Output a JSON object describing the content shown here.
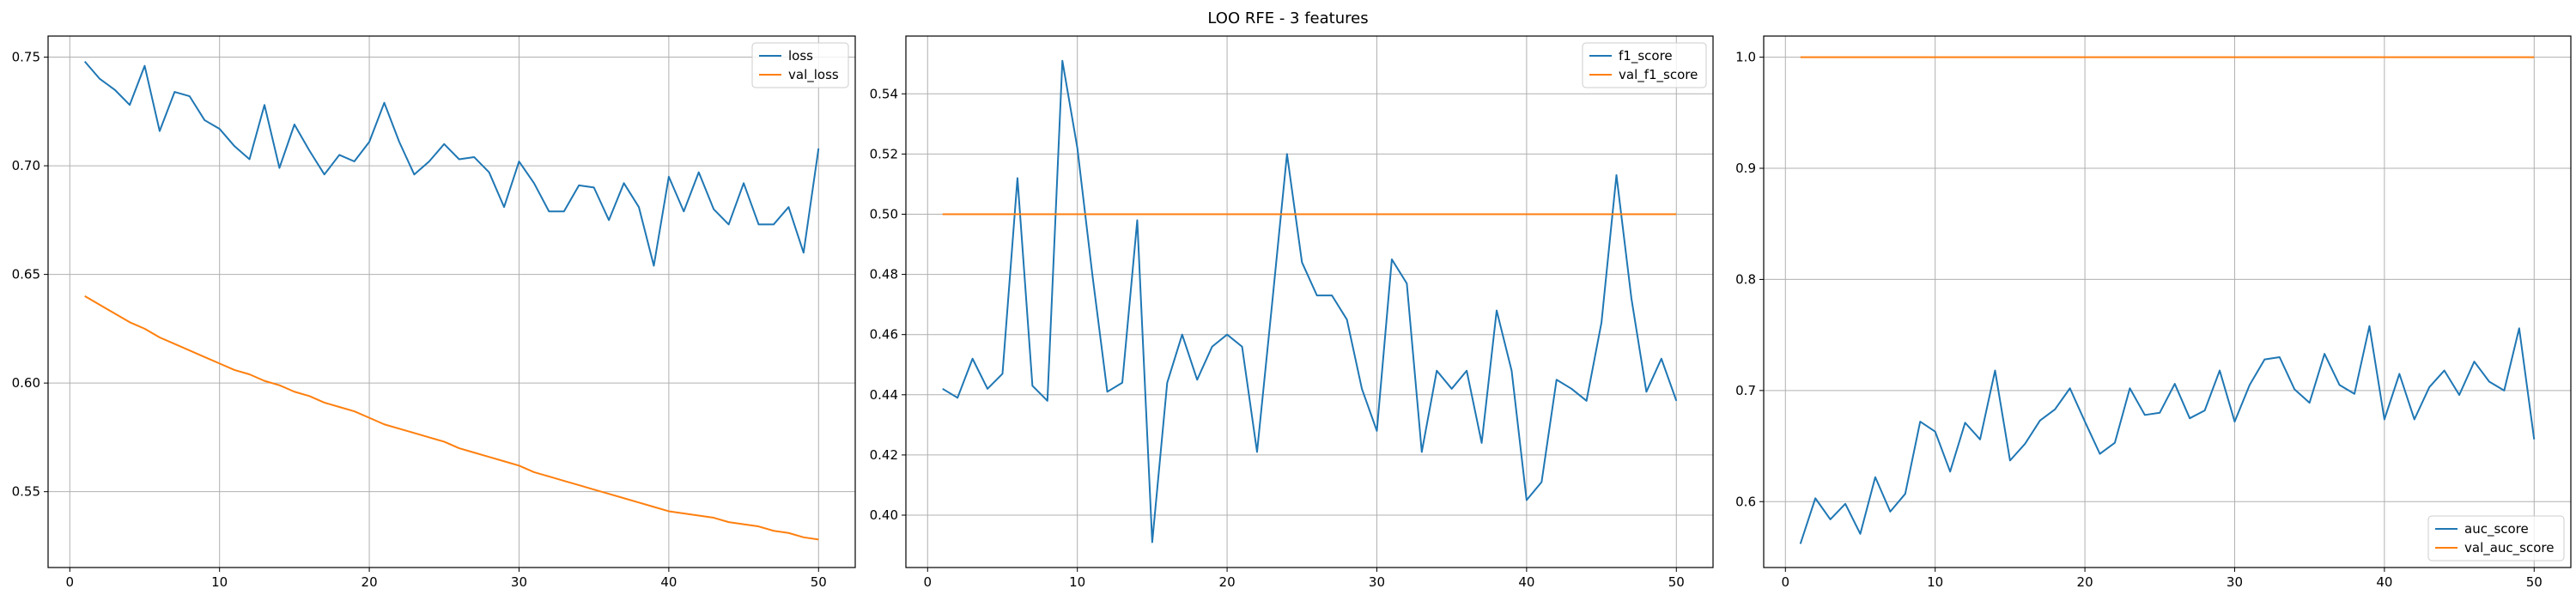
{
  "figure": {
    "title": "LOO RFE - 3 features"
  },
  "colors": {
    "series_1": "#1f77b4",
    "series_2": "#ff7f0e",
    "grid": "#b0b0b0",
    "axes": "#000000",
    "background": "#ffffff"
  },
  "chart_data": [
    {
      "type": "line",
      "title": "",
      "xlabel": "",
      "ylabel": "",
      "xlim": [
        -1.45,
        52.45
      ],
      "ylim": [
        0.5151,
        0.7597
      ],
      "xticks": [
        0,
        10,
        20,
        30,
        40,
        50
      ],
      "yticks": [
        0.55,
        0.6,
        0.65,
        0.7,
        0.75
      ],
      "ytick_labels": [
        "0.55",
        "0.60",
        "0.65",
        "0.70",
        "0.75"
      ],
      "grid": true,
      "legend_position": "top-right",
      "x": [
        1,
        2,
        3,
        4,
        5,
        6,
        7,
        8,
        9,
        10,
        11,
        12,
        13,
        14,
        15,
        16,
        17,
        18,
        19,
        20,
        21,
        22,
        23,
        24,
        25,
        26,
        27,
        28,
        29,
        30,
        31,
        32,
        33,
        34,
        35,
        36,
        37,
        38,
        39,
        40,
        41,
        42,
        43,
        44,
        45,
        46,
        47,
        48,
        49,
        50
      ],
      "series": [
        {
          "name": "loss",
          "values": [
            0.748,
            0.74,
            0.735,
            0.728,
            0.746,
            0.716,
            0.734,
            0.732,
            0.721,
            0.717,
            0.709,
            0.703,
            0.728,
            0.699,
            0.719,
            0.707,
            0.696,
            0.705,
            0.702,
            0.711,
            0.729,
            0.711,
            0.696,
            0.702,
            0.71,
            0.703,
            0.704,
            0.697,
            0.681,
            0.702,
            0.692,
            0.679,
            0.679,
            0.691,
            0.69,
            0.675,
            0.692,
            0.681,
            0.654,
            0.695,
            0.679,
            0.697,
            0.68,
            0.673,
            0.692,
            0.673,
            0.673,
            0.681,
            0.66,
            0.708
          ]
        },
        {
          "name": "val_loss",
          "values": [
            0.64,
            0.636,
            0.632,
            0.628,
            0.625,
            0.621,
            0.618,
            0.615,
            0.612,
            0.609,
            0.606,
            0.604,
            0.601,
            0.599,
            0.596,
            0.594,
            0.591,
            0.589,
            0.587,
            0.584,
            0.581,
            0.579,
            0.577,
            0.575,
            0.573,
            0.57,
            0.568,
            0.566,
            0.564,
            0.562,
            0.559,
            0.557,
            0.555,
            0.553,
            0.551,
            0.549,
            0.547,
            0.545,
            0.543,
            0.541,
            0.54,
            0.539,
            0.538,
            0.536,
            0.535,
            0.534,
            0.532,
            0.531,
            0.529,
            0.528
          ]
        }
      ]
    },
    {
      "type": "line",
      "title": "",
      "xlabel": "",
      "ylabel": "",
      "xlim": [
        -1.45,
        52.45
      ],
      "ylim": [
        0.3826,
        0.5592
      ],
      "xticks": [
        0,
        10,
        20,
        30,
        40,
        50
      ],
      "yticks": [
        0.4,
        0.42,
        0.44,
        0.46,
        0.48,
        0.5,
        0.52,
        0.54
      ],
      "ytick_labels": [
        "0.40",
        "0.42",
        "0.44",
        "0.46",
        "0.48",
        "0.50",
        "0.52",
        "0.54"
      ],
      "grid": true,
      "legend_position": "top-right",
      "x": [
        1,
        2,
        3,
        4,
        5,
        6,
        7,
        8,
        9,
        10,
        11,
        12,
        13,
        14,
        15,
        16,
        17,
        18,
        19,
        20,
        21,
        22,
        23,
        24,
        25,
        26,
        27,
        28,
        29,
        30,
        31,
        32,
        33,
        34,
        35,
        36,
        37,
        38,
        39,
        40,
        41,
        42,
        43,
        44,
        45,
        46,
        47,
        48,
        49,
        50
      ],
      "series": [
        {
          "name": "f1_score",
          "values": [
            0.442,
            0.439,
            0.452,
            0.442,
            0.447,
            0.512,
            0.443,
            0.438,
            0.551,
            0.522,
            0.48,
            0.441,
            0.444,
            0.498,
            0.391,
            0.444,
            0.46,
            0.445,
            0.456,
            0.46,
            0.456,
            0.421,
            0.47,
            0.52,
            0.484,
            0.473,
            0.473,
            0.465,
            0.442,
            0.428,
            0.485,
            0.477,
            0.421,
            0.448,
            0.442,
            0.448,
            0.424,
            0.468,
            0.448,
            0.405,
            0.411,
            0.445,
            0.442,
            0.438,
            0.464,
            0.513,
            0.472,
            0.441,
            0.452,
            0.438
          ]
        },
        {
          "name": "val_f1_score",
          "values": [
            0.5,
            0.5,
            0.5,
            0.5,
            0.5,
            0.5,
            0.5,
            0.5,
            0.5,
            0.5,
            0.5,
            0.5,
            0.5,
            0.5,
            0.5,
            0.5,
            0.5,
            0.5,
            0.5,
            0.5,
            0.5,
            0.5,
            0.5,
            0.5,
            0.5,
            0.5,
            0.5,
            0.5,
            0.5,
            0.5,
            0.5,
            0.5,
            0.5,
            0.5,
            0.5,
            0.5,
            0.5,
            0.5,
            0.5,
            0.5,
            0.5,
            0.5,
            0.5,
            0.5,
            0.5,
            0.5,
            0.5,
            0.5,
            0.5,
            0.5
          ]
        }
      ]
    },
    {
      "type": "line",
      "title": "",
      "xlabel": "",
      "ylabel": "",
      "xlim": [
        -1.45,
        52.45
      ],
      "ylim": [
        0.5407,
        1.019
      ],
      "xticks": [
        0,
        10,
        20,
        30,
        40,
        50
      ],
      "yticks": [
        0.6,
        0.7,
        0.8,
        0.9,
        1.0
      ],
      "ytick_labels": [
        "0.6",
        "0.7",
        "0.8",
        "0.9",
        "1.0"
      ],
      "grid": true,
      "legend_position": "bottom-right",
      "x": [
        1,
        2,
        3,
        4,
        5,
        6,
        7,
        8,
        9,
        10,
        11,
        12,
        13,
        14,
        15,
        16,
        17,
        18,
        19,
        20,
        21,
        22,
        23,
        24,
        25,
        26,
        27,
        28,
        29,
        30,
        31,
        32,
        33,
        34,
        35,
        36,
        37,
        38,
        39,
        40,
        41,
        42,
        43,
        44,
        45,
        46,
        47,
        48,
        49,
        50
      ],
      "series": [
        {
          "name": "auc_score",
          "values": [
            0.562,
            0.603,
            0.584,
            0.598,
            0.571,
            0.622,
            0.591,
            0.607,
            0.672,
            0.663,
            0.627,
            0.671,
            0.656,
            0.718,
            0.637,
            0.652,
            0.673,
            0.683,
            0.702,
            0.672,
            0.643,
            0.653,
            0.702,
            0.678,
            0.68,
            0.706,
            0.675,
            0.682,
            0.718,
            0.672,
            0.705,
            0.728,
            0.73,
            0.701,
            0.689,
            0.733,
            0.705,
            0.697,
            0.758,
            0.674,
            0.715,
            0.674,
            0.703,
            0.718,
            0.696,
            0.726,
            0.708,
            0.7,
            0.756,
            0.656
          ]
        },
        {
          "name": "val_auc_score",
          "values": [
            1.0,
            1.0,
            1.0,
            1.0,
            1.0,
            1.0,
            1.0,
            1.0,
            1.0,
            1.0,
            1.0,
            1.0,
            1.0,
            1.0,
            1.0,
            1.0,
            1.0,
            1.0,
            1.0,
            1.0,
            1.0,
            1.0,
            1.0,
            1.0,
            1.0,
            1.0,
            1.0,
            1.0,
            1.0,
            1.0,
            1.0,
            1.0,
            1.0,
            1.0,
            1.0,
            1.0,
            1.0,
            1.0,
            1.0,
            1.0,
            1.0,
            1.0,
            1.0,
            1.0,
            1.0,
            1.0,
            1.0,
            1.0,
            1.0,
            1.0
          ]
        }
      ]
    }
  ]
}
